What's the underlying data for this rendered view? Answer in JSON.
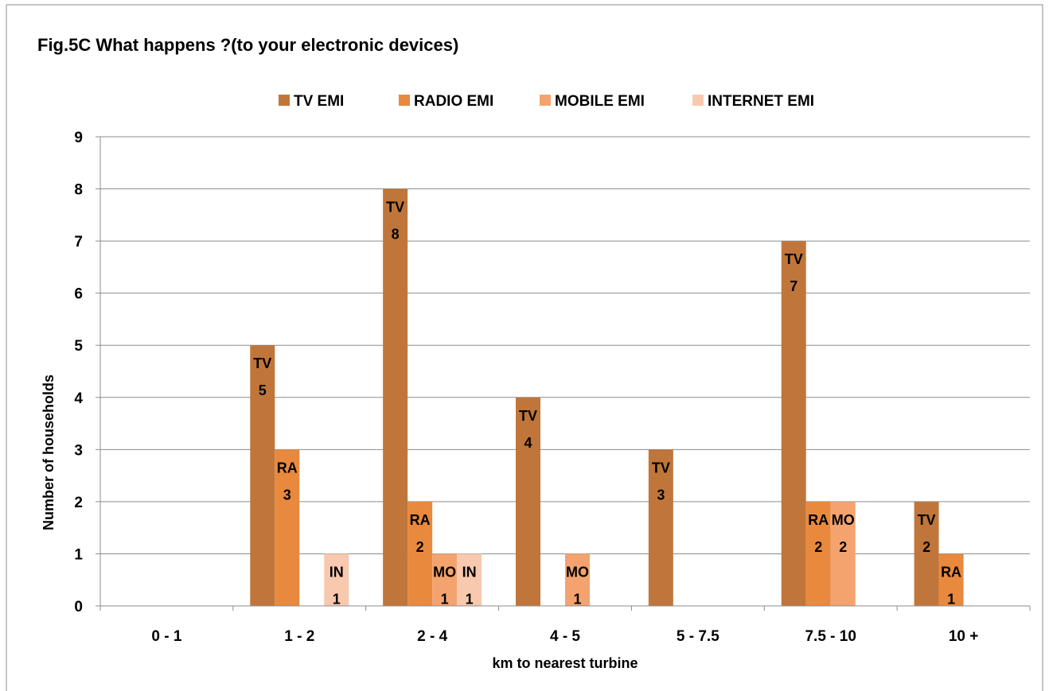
{
  "chart_data": {
    "type": "bar",
    "title": "Fig.5C  What happens ?(to your electronic devices)",
    "xlabel": "km to nearest turbine",
    "ylabel": "Number  of households",
    "categories": [
      "0 - 1",
      "1 - 2",
      "2 - 4",
      "4 - 5",
      "5  - 7.5",
      "7.5 - 10",
      "10 +"
    ],
    "ylim": [
      0,
      9
    ],
    "yticks": [
      0,
      1,
      2,
      3,
      4,
      5,
      6,
      7,
      8,
      9
    ],
    "grid": true,
    "legend_position": "top",
    "series": [
      {
        "name": "TV EMI",
        "label_prefix": "TV",
        "color": "#c0763a",
        "values": [
          0,
          5,
          8,
          4,
          3,
          7,
          2
        ]
      },
      {
        "name": "RADIO EMI",
        "label_prefix": "RA",
        "color": "#e8893e",
        "values": [
          0,
          3,
          2,
          0,
          0,
          2,
          1
        ]
      },
      {
        "name": "MOBILE EMI",
        "label_prefix": "MO",
        "color": "#f4a36f",
        "values": [
          0,
          0,
          1,
          1,
          0,
          2,
          0
        ]
      },
      {
        "name": "INTERNET EMI",
        "label_prefix": "IN",
        "color": "#f8c9ae",
        "values": [
          0,
          1,
          1,
          0,
          0,
          0,
          0
        ]
      }
    ]
  }
}
